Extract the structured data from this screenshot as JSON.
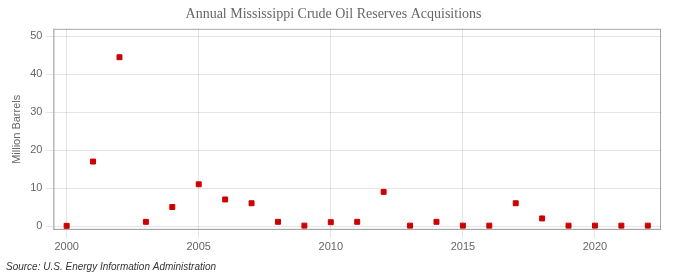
{
  "chart_data": {
    "type": "scatter",
    "title": "Annual Mississippi Crude Oil Reserves Acquisitions",
    "ylabel": "Million Barrels",
    "annotations": [
      "Source: U.S. Energy Information Administration"
    ],
    "x": [
      2000,
      2001,
      2002,
      2003,
      2004,
      2005,
      2006,
      2007,
      2008,
      2009,
      2010,
      2011,
      2012,
      2013,
      2014,
      2015,
      2016,
      2017,
      2018,
      2019,
      2020,
      2021,
      2022
    ],
    "values": [
      0.05,
      17.0,
      44.5,
      1.1,
      5.0,
      11.0,
      7.0,
      6.0,
      1.1,
      0.1,
      1.0,
      1.1,
      9.0,
      0.1,
      1.1,
      0.1,
      0.1,
      6.0,
      2.0,
      0.1,
      0.1,
      0.1,
      0.1
    ],
    "color": "#cc0000",
    "marker": "square",
    "xlim": [
      1999.5,
      2022.5
    ],
    "xticks": [
      2000,
      2005,
      2010,
      2015,
      2020
    ],
    "ylim": [
      -1,
      52
    ],
    "yticks": [
      0,
      10,
      20,
      30,
      40,
      50
    ],
    "grid": true
  }
}
